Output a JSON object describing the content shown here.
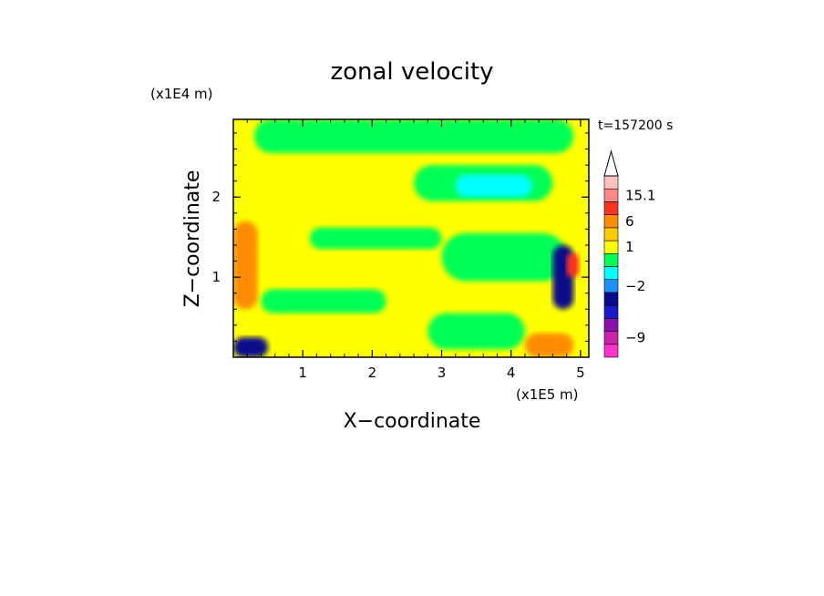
{
  "chart_data": {
    "type": "heatmap",
    "title": "zonal velocity",
    "xlabel": "X−coordinate",
    "ylabel": "Z−coordinate",
    "x_scale_label": "(x1E5 m)",
    "y_scale_label": "(x1E4 m)",
    "time_label": "t=157200 s",
    "xlim": [
      0,
      5.12
    ],
    "ylim": [
      0,
      2.97
    ],
    "x_ticks": [
      {
        "value": 1,
        "label": "1"
      },
      {
        "value": 2,
        "label": "2"
      },
      {
        "value": 3,
        "label": "3"
      },
      {
        "value": 4,
        "label": "4"
      },
      {
        "value": 5,
        "label": "5"
      }
    ],
    "y_ticks": [
      {
        "value": 1,
        "label": "1"
      },
      {
        "value": 2,
        "label": "2"
      }
    ],
    "colorbar": {
      "levels": [
        {
          "color": "#ff33cc",
          "label": ""
        },
        {
          "color": "#cc22aa",
          "label": "−9"
        },
        {
          "color": "#8811aa",
          "label": ""
        },
        {
          "color": "#1a1acc",
          "label": ""
        },
        {
          "color": "#0a0a8c",
          "label": ""
        },
        {
          "color": "#1e90ff",
          "label": "−2"
        },
        {
          "color": "#00ffff",
          "label": ""
        },
        {
          "color": "#00ff55",
          "label": ""
        },
        {
          "color": "#ffff00",
          "label": "1"
        },
        {
          "color": "#ffcc00",
          "label": ""
        },
        {
          "color": "#ff8c00",
          "label": "6"
        },
        {
          "color": "#ff3322",
          "label": ""
        },
        {
          "color": "#ff8888",
          "label": "15.1"
        },
        {
          "color": "#ffc0c0",
          "label": ""
        }
      ],
      "extend_max": true
    },
    "field_regions": [
      {
        "color": "#ffff00",
        "x": [
          0,
          5.12
        ],
        "y": [
          0,
          2.97
        ]
      },
      {
        "color": "#00ff55",
        "x": [
          0.3,
          4.9
        ],
        "y": [
          2.55,
          2.97
        ]
      },
      {
        "color": "#00ff55",
        "x": [
          2.6,
          4.6
        ],
        "y": [
          1.95,
          2.4
        ]
      },
      {
        "color": "#00ffff",
        "x": [
          3.2,
          4.3
        ],
        "y": [
          2.0,
          2.28
        ]
      },
      {
        "color": "#00ff55",
        "x": [
          1.1,
          3.0
        ],
        "y": [
          1.35,
          1.62
        ]
      },
      {
        "color": "#00ff55",
        "x": [
          3.0,
          4.8
        ],
        "y": [
          0.95,
          1.55
        ]
      },
      {
        "color": "#00ff55",
        "x": [
          0.4,
          2.2
        ],
        "y": [
          0.55,
          0.85
        ]
      },
      {
        "color": "#00ff55",
        "x": [
          2.8,
          4.2
        ],
        "y": [
          0.1,
          0.55
        ]
      },
      {
        "color": "#ff8c00",
        "x": [
          0.0,
          0.35
        ],
        "y": [
          0.6,
          1.7
        ]
      },
      {
        "color": "#0a0a8c",
        "x": [
          0.0,
          0.5
        ],
        "y": [
          0.0,
          0.25
        ]
      },
      {
        "color": "#0a0a8c",
        "x": [
          4.6,
          4.9
        ],
        "y": [
          0.6,
          1.4
        ]
      },
      {
        "color": "#ff3322",
        "x": [
          4.8,
          4.98
        ],
        "y": [
          1.0,
          1.3
        ]
      },
      {
        "color": "#ff8c00",
        "x": [
          4.2,
          4.9
        ],
        "y": [
          0.0,
          0.3
        ]
      }
    ]
  }
}
